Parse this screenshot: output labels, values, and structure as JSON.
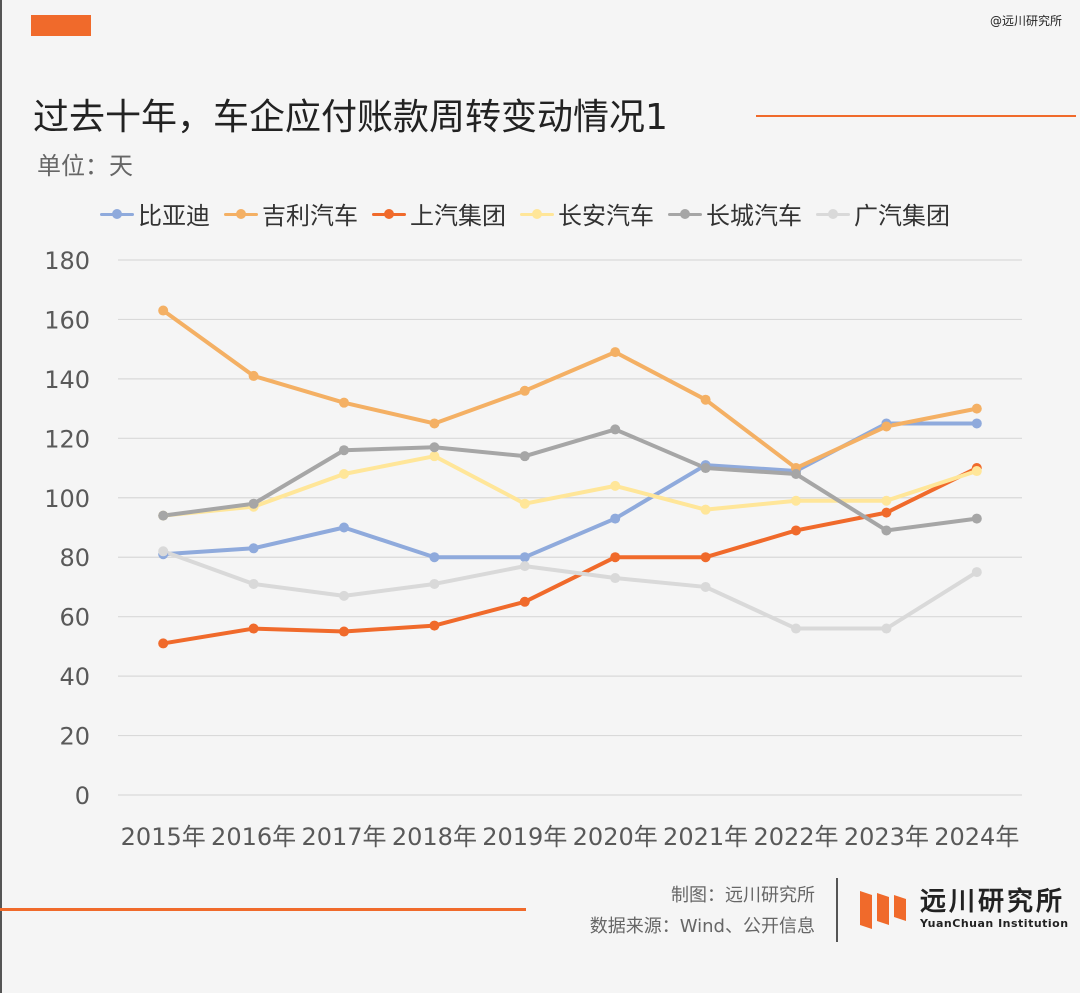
{
  "watermark": "@远川研究所",
  "title": "过去十年，车企应付账款周转变动情况1",
  "unit": "单位：天",
  "footer": {
    "credit_line1": "制图：远川研究所",
    "credit_line2": "数据来源：Wind、公开信息",
    "logo_cn": "远川研究所",
    "logo_en": "YuanChuan Institution"
  },
  "colors": {
    "accent": "#f06a2b",
    "grid": "#d9d9d9",
    "axis_text": "#595959"
  },
  "chart_data": {
    "type": "line",
    "title": "",
    "xlabel": "",
    "ylabel": "",
    "ylim": [
      0,
      180
    ],
    "yticks": [
      0,
      20,
      40,
      60,
      80,
      100,
      120,
      140,
      160,
      180
    ],
    "grid": true,
    "legend_position": "top",
    "categories": [
      "2015年",
      "2016年",
      "2017年",
      "2018年",
      "2019年",
      "2020年",
      "2021年",
      "2022年",
      "2023年",
      "2024年"
    ],
    "series": [
      {
        "name": "比亚迪",
        "color": "#8faadc",
        "values": [
          81,
          83,
          90,
          80,
          80,
          93,
          111,
          109,
          125,
          125
        ]
      },
      {
        "name": "吉利汽车",
        "color": "#f4b064",
        "values": [
          163,
          141,
          132,
          125,
          136,
          149,
          133,
          110,
          124,
          130
        ]
      },
      {
        "name": "上汽集团",
        "color": "#f06a2b",
        "values": [
          51,
          56,
          55,
          57,
          65,
          80,
          80,
          89,
          95,
          110
        ]
      },
      {
        "name": "长安汽车",
        "color": "#ffe699",
        "values": [
          94,
          97,
          108,
          114,
          98,
          104,
          96,
          99,
          99,
          109
        ]
      },
      {
        "name": "长城汽车",
        "color": "#a6a6a6",
        "values": [
          94,
          98,
          116,
          117,
          114,
          123,
          110,
          108,
          89,
          93
        ]
      },
      {
        "name": "广汽集团",
        "color": "#d9d9d9",
        "values": [
          82,
          71,
          67,
          71,
          77,
          73,
          70,
          56,
          56,
          75
        ]
      }
    ]
  }
}
